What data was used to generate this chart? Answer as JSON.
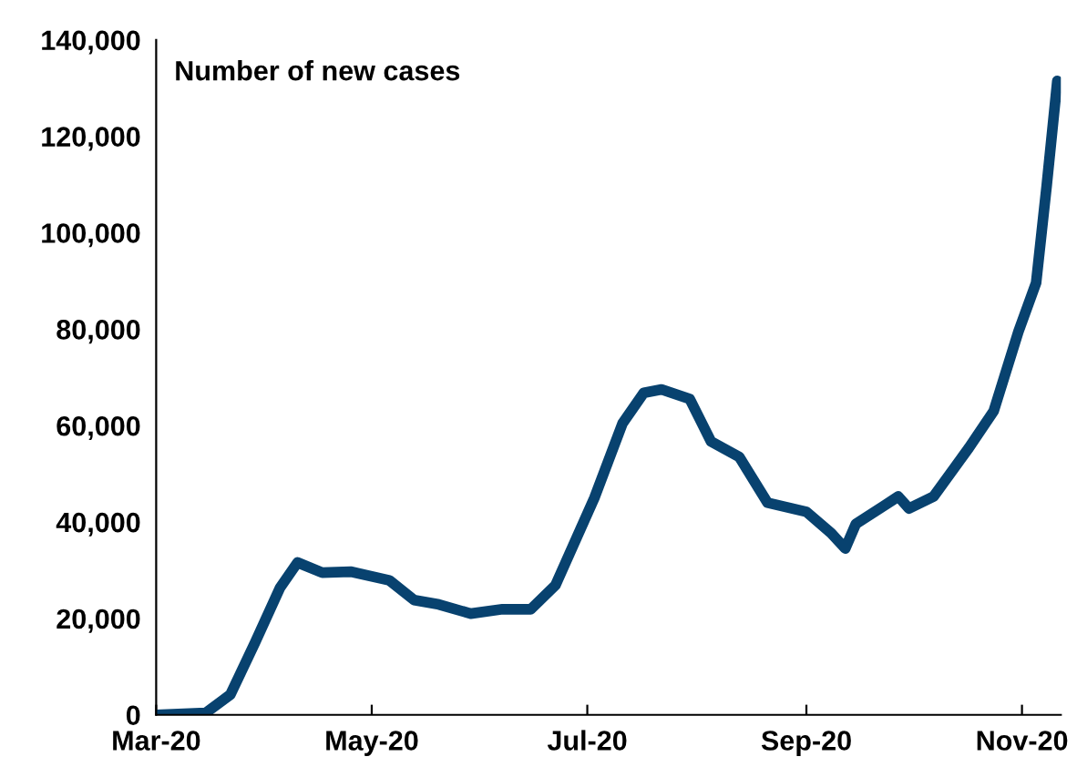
{
  "chart_data": {
    "type": "line",
    "title": "Number of new cases",
    "x": [
      "2020-03-01",
      "2020-03-15",
      "2020-03-22",
      "2020-03-29",
      "2020-04-05",
      "2020-04-10",
      "2020-04-17",
      "2020-04-25",
      "2020-05-06",
      "2020-05-13",
      "2020-05-20",
      "2020-05-29",
      "2020-06-07",
      "2020-06-15",
      "2020-06-22",
      "2020-07-03",
      "2020-07-11",
      "2020-07-17",
      "2020-07-22",
      "2020-07-30",
      "2020-08-05",
      "2020-08-13",
      "2020-08-21",
      "2020-09-01",
      "2020-09-08",
      "2020-09-12",
      "2020-09-15",
      "2020-09-23",
      "2020-09-27",
      "2020-09-30",
      "2020-10-07",
      "2020-10-17",
      "2020-10-24",
      "2020-10-31",
      "2020-11-05",
      "2020-11-08",
      "2020-11-11"
    ],
    "series": [
      {
        "color": "#08426f",
        "values": [
          0,
          400,
          4200,
          15000,
          26300,
          31600,
          29500,
          29700,
          27900,
          23800,
          22900,
          21000,
          21900,
          21900,
          26900,
          45000,
          60500,
          66800,
          67500,
          65500,
          56700,
          53500,
          44000,
          42100,
          37700,
          34500,
          39600,
          43400,
          45300,
          42800,
          45300,
          55400,
          63000,
          79500,
          89600,
          109800,
          131500
        ]
      }
    ],
    "xlim": [
      "2020-03-01",
      "2020-11-12"
    ],
    "xticks": [
      {
        "value": "2020-03-01",
        "label": "Mar-20"
      },
      {
        "value": "2020-05-01",
        "label": "May-20"
      },
      {
        "value": "2020-07-01",
        "label": "Jul-20"
      },
      {
        "value": "2020-09-01",
        "label": "Sep-20"
      },
      {
        "value": "2020-11-01",
        "label": "Nov-20"
      }
    ],
    "ylim": [
      0,
      140000
    ],
    "yticks": [
      0,
      {
        "value": 20000,
        "label": "20,000"
      },
      {
        "value": 40000,
        "label": "40,000"
      },
      {
        "value": 60000,
        "label": "60,000"
      },
      {
        "value": 80000,
        "label": "80,000"
      },
      {
        "value": 100000,
        "label": "100,000"
      },
      {
        "value": 120000,
        "label": "120,000"
      },
      {
        "value": 140000,
        "label": "140,000"
      }
    ],
    "grid": false,
    "legend": false,
    "line_style": "solid"
  }
}
